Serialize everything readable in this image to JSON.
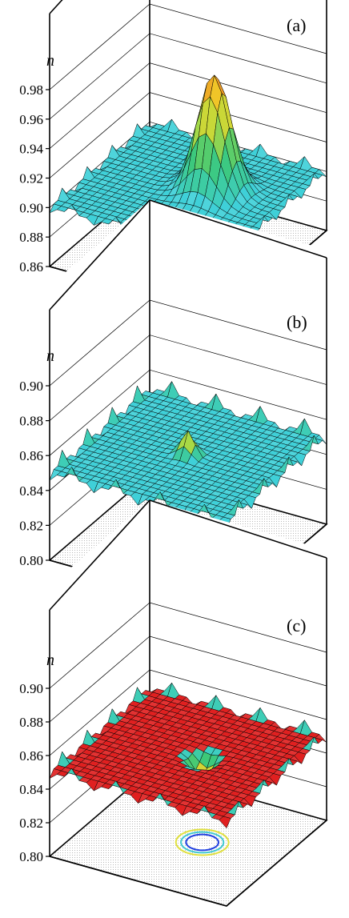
{
  "chart_data": [
    {
      "type": "surface3d",
      "panel_label": "(a)",
      "zlabel": "n",
      "zticks": [
        "0.98",
        "0.96",
        "0.94",
        "0.92",
        "0.90",
        "0.88",
        "0.86"
      ],
      "zlim": [
        0.86,
        0.98
      ],
      "surface_color": "#3fd0d8",
      "grid_size": 24,
      "base_level": 0.9,
      "feature": {
        "kind": "peak",
        "center": [
          0.62,
          0.45
        ],
        "height": 0.98,
        "width": 0.085
      },
      "edge_spikes": 0.006,
      "contour": {
        "center": [
          0.62,
          0.45
        ],
        "rings": 5,
        "colors": [
          "#7fe0e6",
          "#40c8d0",
          "#20a8b0",
          "#80e080",
          "#e0e040"
        ]
      }
    },
    {
      "type": "surface3d",
      "panel_label": "(b)",
      "zlabel": "n",
      "zticks": [
        "0.90",
        "0.88",
        "0.86",
        "0.84",
        "0.82",
        "0.80"
      ],
      "zlim": [
        0.8,
        0.9
      ],
      "surface_color": "#3fd0d8",
      "grid_size": 24,
      "base_level": 0.85,
      "feature": {
        "kind": "peak",
        "center": [
          0.5,
          0.5
        ],
        "height": 0.864,
        "width": 0.035
      },
      "edge_spikes": 0.007,
      "contour": {
        "center": [
          0.5,
          0.5
        ],
        "rings": 2,
        "colors": [
          "#2040e0",
          "#40c8d0"
        ]
      }
    },
    {
      "type": "surface3d",
      "panel_label": "(c)",
      "zlabel": "n",
      "zticks": [
        "0.90",
        "0.88",
        "0.86",
        "0.84",
        "0.82",
        "0.80"
      ],
      "zlim": [
        0.8,
        0.9
      ],
      "surface_color": "#e02020",
      "grid_size": 24,
      "base_level": 0.85,
      "feature": {
        "kind": "dip",
        "center": [
          0.58,
          0.5
        ],
        "height": 0.838,
        "width": 0.045
      },
      "edge_spikes": 0.006,
      "contour": {
        "center": [
          0.58,
          0.5
        ],
        "rings": 4,
        "colors": [
          "#e0e040",
          "#40c8d0",
          "#2040e0",
          "#ffffff"
        ]
      }
    }
  ]
}
